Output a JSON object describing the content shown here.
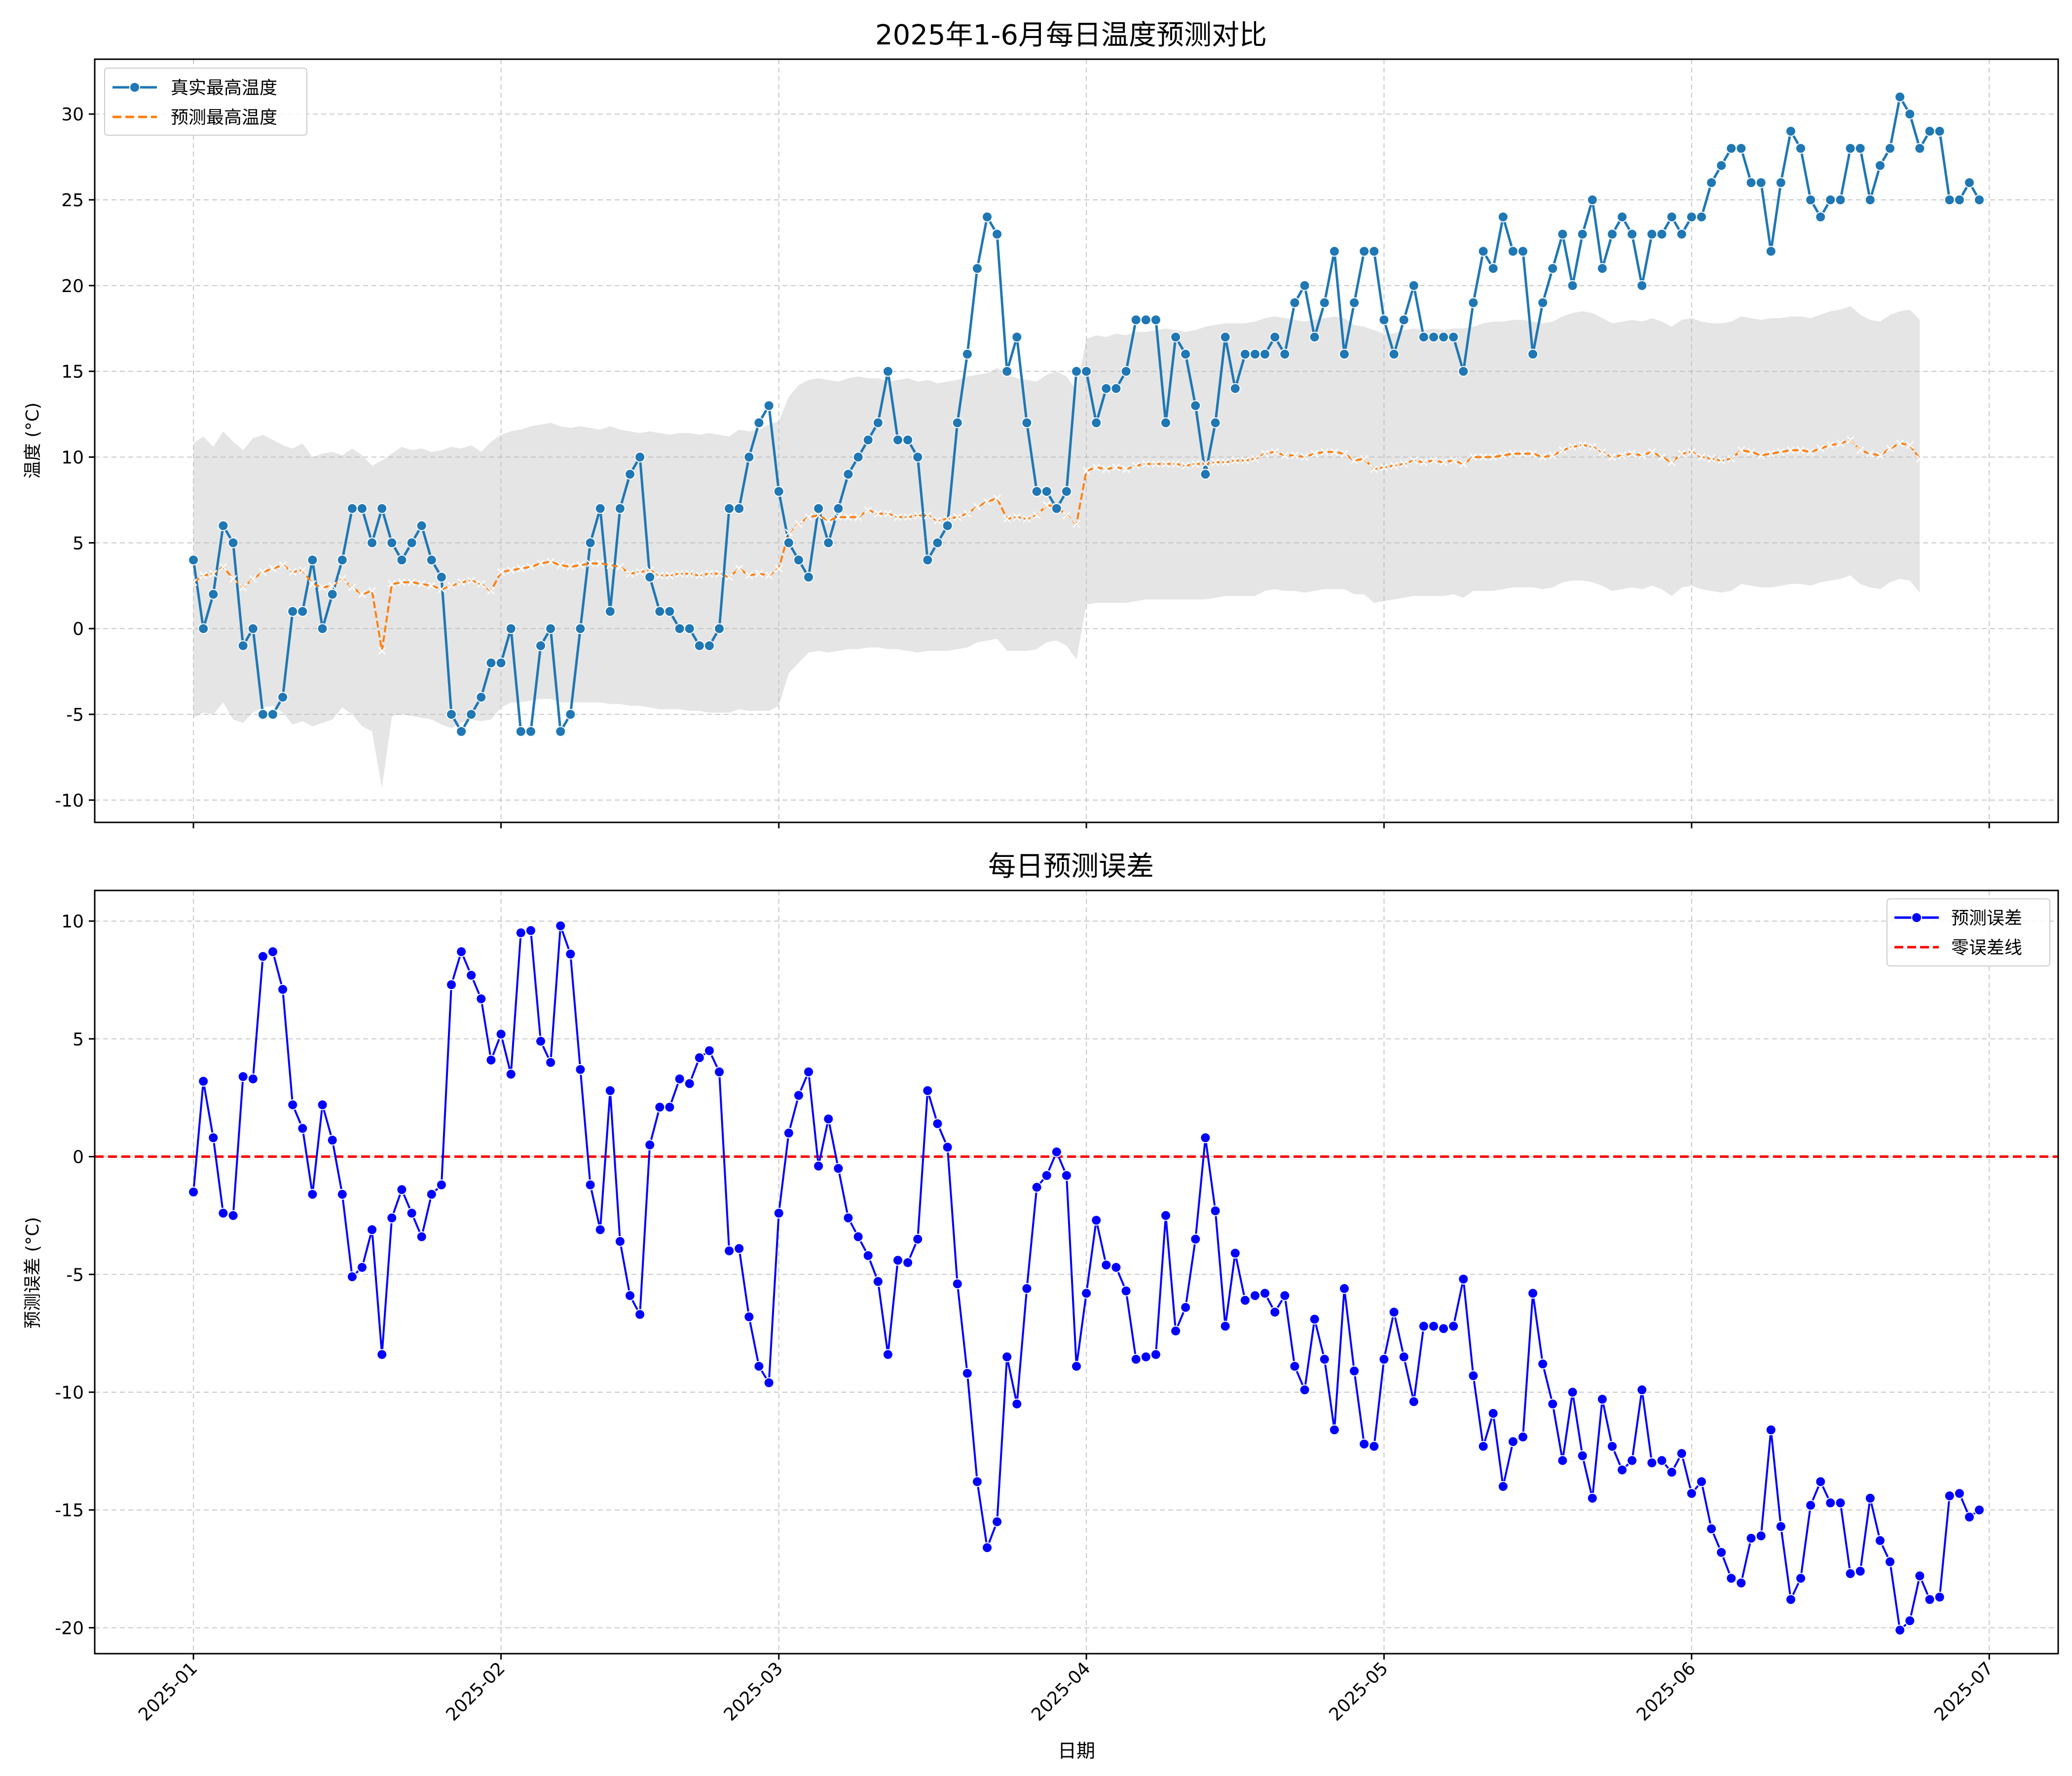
{
  "figure": {
    "xlabel": "日期"
  },
  "colors": {
    "actual": "#1f77b4",
    "predicted": "#ff7f0e",
    "band": "#bdbdbd",
    "error": "#0000ff",
    "zero": "#ff0000",
    "grid": "#b0b0b0"
  },
  "chart_data": [
    {
      "type": "line",
      "title": "2025年1-6月每日温度预测对比",
      "xlabel": "",
      "ylabel": "温度 (°C)",
      "ylim": [
        -11.3,
        33.2
      ],
      "yticks": [
        -10,
        -5,
        0,
        5,
        10,
        15,
        20,
        25,
        30
      ],
      "x_start": "2025-01-01",
      "x_end": "2025-06-30",
      "xticks": [
        "2025-01",
        "2025-02",
        "2025-03",
        "2025-04",
        "2025-05",
        "2025-06",
        "2025-07"
      ],
      "grid": true,
      "legend": "top-left",
      "series": [
        {
          "name": "真实最高温度",
          "marker": "o",
          "values": [
            4,
            0,
            2,
            6,
            5,
            -1,
            0,
            -5,
            -5,
            -4,
            1,
            1,
            4,
            0,
            2,
            4,
            7,
            7,
            5,
            7,
            5,
            4,
            5,
            6,
            4,
            3,
            -5,
            -6,
            -5,
            -4,
            -2,
            -2,
            0,
            -6,
            -6,
            -1,
            0,
            -6,
            -5,
            0,
            5,
            7,
            1,
            7,
            9,
            10,
            3,
            1,
            1,
            0,
            0,
            -1,
            -1,
            0,
            7,
            7,
            10,
            12,
            13,
            8,
            5,
            4,
            3,
            7,
            5,
            7,
            9,
            10,
            11,
            12,
            15,
            11,
            11,
            10,
            4,
            5,
            6,
            12,
            16,
            21,
            24,
            23,
            15,
            17,
            12,
            8,
            8,
            7,
            8,
            15,
            15,
            12,
            14,
            14,
            15,
            18,
            18,
            18,
            12,
            17,
            16,
            13,
            9,
            12,
            17,
            14,
            16,
            16,
            16,
            17,
            16,
            19,
            20,
            17,
            19,
            22,
            16,
            19,
            22,
            22,
            18,
            16,
            18,
            20,
            17,
            17,
            17,
            17,
            15,
            19,
            22,
            21,
            24,
            22,
            22,
            16,
            19,
            21,
            23,
            20,
            23,
            25,
            21,
            23,
            24,
            23,
            20,
            23,
            23,
            24,
            23,
            24,
            24,
            26,
            27,
            28,
            28,
            26,
            26,
            22,
            26,
            29,
            28,
            25,
            24,
            25,
            25,
            28,
            28,
            25,
            27,
            28,
            31,
            30,
            28,
            29,
            29,
            25,
            25,
            26,
            25
          ]
        },
        {
          "name": "预测最高温度",
          "marker": "x",
          "values": [
            2.7,
            3.1,
            3.2,
            3.6,
            2.9,
            2.4,
            2.9,
            3.3,
            3.5,
            3.7,
            3.3,
            3.4,
            2.6,
            2.4,
            2.5,
            2.9,
            2.4,
            2.0,
            2.2,
            -1.3,
            2.6,
            2.7,
            2.7,
            2.6,
            2.5,
            2.3,
            2.5,
            2.7,
            2.8,
            2.6,
            2.2,
            3.3,
            3.4,
            3.5,
            3.6,
            3.8,
            3.9,
            3.7,
            3.6,
            3.7,
            3.8,
            3.8,
            3.7,
            3.6,
            3.2,
            3.3,
            3.4,
            3.1,
            3.1,
            3.2,
            3.2,
            3.1,
            3.2,
            3.2,
            3.0,
            3.5,
            3.1,
            3.2,
            3.1,
            3.5,
            5.6,
            6.1,
            6.5,
            6.6,
            6.3,
            6.5,
            6.5,
            6.5,
            6.9,
            6.7,
            6.7,
            6.5,
            6.5,
            6.6,
            6.6,
            6.3,
            6.4,
            6.5,
            6.7,
            7.1,
            7.4,
            7.6,
            6.4,
            6.5,
            6.4,
            6.6,
            7.2,
            7.1,
            6.6,
            6.1,
            9.2,
            9.4,
            9.3,
            9.4,
            9.3,
            9.5,
            9.6,
            9.6,
            9.6,
            9.6,
            9.5,
            9.6,
            9.6,
            9.7,
            9.7,
            9.8,
            9.8,
            9.9,
            10.2,
            10.3,
            10.1,
            10.1,
            10.0,
            10.2,
            10.3,
            10.3,
            10.2,
            9.8,
            9.9,
            9.3,
            9.4,
            9.5,
            9.6,
            9.8,
            9.7,
            9.8,
            9.7,
            9.8,
            9.6,
            10.0,
            10.0,
            10.0,
            10.1,
            10.2,
            10.2,
            10.2,
            10.0,
            10.1,
            10.4,
            10.6,
            10.7,
            10.6,
            10.3,
            10.0,
            10.1,
            10.2,
            10.1,
            10.3,
            10.0,
            9.7,
            10.2,
            10.3,
            10.0,
            9.9,
            9.8,
            9.9,
            10.4,
            10.3,
            10.1,
            10.2,
            10.3,
            10.4,
            10.4,
            10.3,
            10.5,
            10.7,
            10.8,
            11.0,
            10.4,
            10.2,
            10.1,
            10.5,
            10.8,
            10.7,
            9.9
          ]
        }
      ],
      "band": {
        "upper": [
          10.8,
          11.2,
          10.6,
          11.5,
          10.9,
          10.4,
          11.1,
          11.3,
          11.0,
          10.7,
          10.5,
          10.8,
          10.0,
          10.2,
          10.3,
          10.1,
          10.5,
          10.1,
          9.5,
          9.8,
          10.2,
          10.6,
          10.4,
          10.5,
          10.3,
          10.4,
          10.6,
          10.5,
          10.7,
          10.3,
          10.9,
          11.3,
          11.5,
          11.6,
          11.8,
          11.9,
          12.0,
          11.8,
          11.7,
          11.8,
          11.7,
          11.6,
          11.8,
          11.6,
          11.5,
          11.4,
          11.5,
          11.4,
          11.3,
          11.4,
          11.4,
          11.3,
          11.4,
          11.3,
          11.2,
          11.6,
          11.5,
          11.6,
          11.9,
          12.1,
          13.5,
          14.2,
          14.5,
          14.6,
          14.5,
          14.4,
          14.6,
          14.7,
          14.6,
          14.6,
          14.4,
          14.5,
          14.6,
          14.4,
          14.5,
          14.3,
          14.4,
          14.5,
          14.7,
          14.8,
          14.9,
          15.2,
          14.8,
          14.6,
          14.5,
          14.4,
          14.8,
          15.0,
          14.7,
          13.9,
          16.9,
          17.1,
          17.0,
          17.2,
          17.1,
          17.3,
          17.3,
          17.4,
          17.5,
          17.4,
          17.3,
          17.4,
          17.6,
          17.7,
          17.8,
          17.8,
          17.8,
          17.9,
          18.1,
          18.2,
          18.1,
          18.0,
          17.9,
          18.0,
          18.1,
          18.2,
          18.1,
          17.7,
          17.6,
          17.4,
          17.2,
          17.2,
          17.4,
          17.5,
          17.4,
          17.5,
          17.4,
          17.5,
          17.5,
          17.6,
          17.8,
          17.9,
          17.9,
          18.0,
          18.0,
          17.9,
          17.8,
          17.9,
          18.2,
          18.4,
          18.5,
          18.4,
          18.1,
          17.8,
          17.9,
          18.0,
          17.9,
          18.1,
          17.9,
          17.6,
          18.0,
          18.1,
          17.9,
          17.8,
          17.8,
          17.9,
          18.2,
          18.1,
          18.0,
          18.1,
          18.1,
          18.2,
          18.2,
          18.1,
          18.3,
          18.5,
          18.6,
          18.8,
          18.3,
          18.0,
          17.9,
          18.3,
          18.5,
          18.6,
          18.0
        ],
        "lower": [
          -5.2,
          -4.9,
          -5.0,
          -4.3,
          -5.3,
          -5.5,
          -4.9,
          -4.6,
          -4.5,
          -4.9,
          -5.6,
          -5.4,
          -5.7,
          -5.5,
          -5.3,
          -4.6,
          -5.0,
          -5.7,
          -6.0,
          -9.3,
          -5.1,
          -5.0,
          -5.1,
          -5.2,
          -5.3,
          -5.6,
          -5.8,
          -5.5,
          -5.3,
          -5.4,
          -5.3,
          -4.6,
          -4.3,
          -4.3,
          -4.2,
          -4.1,
          -4.1,
          -4.3,
          -4.3,
          -4.3,
          -4.3,
          -4.3,
          -4.4,
          -4.4,
          -4.5,
          -4.5,
          -4.6,
          -4.7,
          -4.7,
          -4.7,
          -4.8,
          -4.8,
          -4.9,
          -4.9,
          -4.9,
          -4.7,
          -4.8,
          -4.8,
          -4.8,
          -4.5,
          -2.6,
          -2.0,
          -1.4,
          -1.3,
          -1.4,
          -1.3,
          -1.2,
          -1.2,
          -1.1,
          -1.1,
          -1.2,
          -1.2,
          -1.3,
          -1.4,
          -1.3,
          -1.3,
          -1.3,
          -1.2,
          -1.1,
          -0.8,
          -0.7,
          -0.6,
          -1.3,
          -1.3,
          -1.3,
          -1.2,
          -0.8,
          -0.7,
          -1.0,
          -1.8,
          1.4,
          1.5,
          1.5,
          1.5,
          1.5,
          1.6,
          1.7,
          1.7,
          1.7,
          1.7,
          1.7,
          1.7,
          1.7,
          1.8,
          1.9,
          1.9,
          1.9,
          1.9,
          2.2,
          2.3,
          2.2,
          2.2,
          2.1,
          2.2,
          2.3,
          2.3,
          2.3,
          2.0,
          2.0,
          1.5,
          1.6,
          1.7,
          1.8,
          1.9,
          1.9,
          1.9,
          1.9,
          2.0,
          1.8,
          2.2,
          2.2,
          2.2,
          2.3,
          2.4,
          2.4,
          2.4,
          2.3,
          2.4,
          2.7,
          2.8,
          2.8,
          2.7,
          2.5,
          2.2,
          2.3,
          2.4,
          2.3,
          2.5,
          2.3,
          1.9,
          2.4,
          2.5,
          2.3,
          2.2,
          2.1,
          2.2,
          2.6,
          2.5,
          2.4,
          2.4,
          2.5,
          2.6,
          2.6,
          2.5,
          2.7,
          2.8,
          2.9,
          3.1,
          2.6,
          2.4,
          2.3,
          2.7,
          2.9,
          2.8,
          2.1
        ]
      }
    },
    {
      "type": "line",
      "title": "每日预测误差",
      "xlabel": "日期",
      "ylabel": "预测误差 (°C)",
      "ylim": [
        -21.1,
        11.3
      ],
      "yticks": [
        -20,
        -15,
        -10,
        -5,
        0,
        5,
        10
      ],
      "xticks": [
        "2025-01",
        "2025-02",
        "2025-03",
        "2025-04",
        "2025-05",
        "2025-06",
        "2025-07"
      ],
      "grid": true,
      "legend": "top-right",
      "series": [
        {
          "name": "预测误差",
          "marker": "o",
          "values": [
            -1.5,
            3.2,
            0.8,
            -2.4,
            -2.5,
            3.4,
            3.3,
            8.5,
            8.7,
            7.1,
            2.2,
            1.2,
            -1.6,
            2.2,
            0.7,
            -1.6,
            -5.1,
            -4.7,
            -3.1,
            -8.4,
            -2.6,
            -1.4,
            -2.4,
            -3.4,
            -1.6,
            -1.2,
            7.3,
            8.7,
            7.7,
            6.7,
            4.1,
            5.2,
            3.5,
            9.5,
            9.6,
            4.9,
            4.0,
            9.8,
            8.6,
            3.7,
            -1.2,
            -3.1,
            2.8,
            -3.6,
            -5.9,
            -6.7,
            0.5,
            2.1,
            2.1,
            3.3,
            3.1,
            4.2,
            4.5,
            3.6,
            -4.0,
            -3.9,
            -6.8,
            -8.9,
            -9.6,
            -2.4,
            1.0,
            2.6,
            3.6,
            -0.4,
            1.6,
            -0.5,
            -2.6,
            -3.4,
            -4.2,
            -5.3,
            -8.4,
            -4.4,
            -4.5,
            -3.5,
            2.8,
            1.4,
            0.4,
            -5.4,
            -9.2,
            -13.8,
            -16.6,
            -15.5,
            -8.5,
            -10.5,
            -5.6,
            -1.3,
            -0.8,
            0.2,
            -0.8,
            -8.9,
            -5.8,
            -2.7,
            -4.6,
            -4.7,
            -5.7,
            -8.6,
            -8.5,
            -8.4,
            -2.5,
            -7.4,
            -6.4,
            -3.5,
            0.8,
            -2.3,
            -7.2,
            -4.1,
            -6.1,
            -5.9,
            -5.8,
            -6.6,
            -5.9,
            -8.9,
            -9.9,
            -6.9,
            -8.6,
            -11.6,
            -5.6,
            -9.1,
            -12.2,
            -12.3,
            -8.6,
            -6.6,
            -8.5,
            -10.4,
            -7.2,
            -7.2,
            -7.3,
            -7.2,
            -5.2,
            -9.3,
            -12.3,
            -10.9,
            -14.0,
            -12.1,
            -11.9,
            -5.8,
            -8.8,
            -10.5,
            -12.9,
            -10.0,
            -12.7,
            -14.5,
            -10.3,
            -12.3,
            -13.3,
            -12.9,
            -9.9,
            -13.0,
            -12.9,
            -13.4,
            -12.6,
            -14.3,
            -13.8,
            -15.8,
            -16.8,
            -17.9,
            -18.1,
            -16.2,
            -16.1,
            -11.6,
            -15.7,
            -18.8,
            -17.9,
            -14.8,
            -13.8,
            -14.7,
            -14.7,
            -17.7,
            -17.6,
            -14.5,
            -16.3,
            -17.2,
            -20.1,
            -19.7,
            -17.8,
            -18.8,
            -18.7,
            -14.4,
            -14.3,
            -15.3,
            -15.0
          ]
        },
        {
          "name": "零误差线",
          "marker": "",
          "values": [
            0,
            0
          ],
          "style": "dashed"
        }
      ]
    }
  ]
}
